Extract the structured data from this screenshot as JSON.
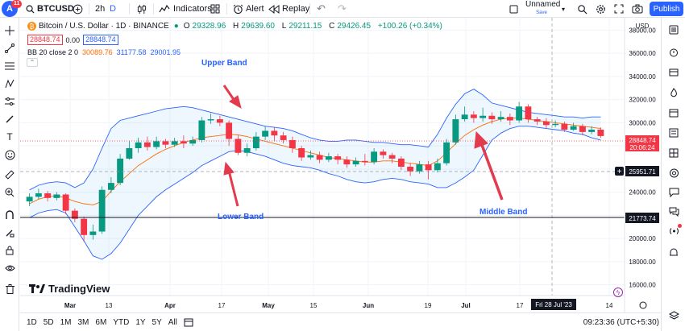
{
  "header": {
    "badge_count": "11",
    "symbol": "BTCUSD",
    "interval": "2h",
    "chart_style_letter": "D",
    "indicators_label": "Indicators",
    "alert_label": "Alert",
    "replay_label": "Replay",
    "layout_name": "Unnamed",
    "layout_status": "Save",
    "publish_label": "Publish"
  },
  "legend": {
    "title": "Bitcoin / U.S. Dollar · 1D · BINANCE",
    "ohlc": [
      {
        "k": "O",
        "v": "29328.96"
      },
      {
        "k": "H",
        "v": "29639.60"
      },
      {
        "k": "L",
        "v": "29211.15"
      },
      {
        "k": "C",
        "v": "29426.45"
      }
    ],
    "change": "+100.26 (+0.34%)",
    "bid": "28848.74",
    "spread": "0.00",
    "ask": "28848.74",
    "bb_name": "BB 20 close 2 0",
    "bb_basis": "30089.76",
    "bb_upper": "31177.58",
    "bb_lower": "29001.95"
  },
  "axis": {
    "currency": "USD",
    "price_ticks": [
      "38000.00",
      "36000.00",
      "34000.00",
      "32000.00",
      "30000.00",
      "28000.00",
      "26000.00",
      "24000.00",
      "22000.00",
      "20000.00",
      "18000.00",
      "16000.00"
    ],
    "current_price": "28848.74",
    "countdown": "20:06:24",
    "crosshair_price": "25951.71",
    "line_price": "21773.74",
    "time_ticks": [
      {
        "label": "Mar",
        "bold": true
      },
      {
        "label": "13",
        "bold": false
      },
      {
        "label": "Apr",
        "bold": true
      },
      {
        "label": "17",
        "bold": false
      },
      {
        "label": "May",
        "bold": true
      },
      {
        "label": "15",
        "bold": false
      },
      {
        "label": "Jun",
        "bold": true
      },
      {
        "label": "19",
        "bold": false
      },
      {
        "label": "Jul",
        "bold": true
      },
      {
        "label": "17",
        "bold": false
      },
      {
        "label": "14",
        "bold": false
      }
    ],
    "crosshair_date": "Fri 28 Jul '23"
  },
  "annotations": {
    "upper": "Upper Band",
    "lower": "Lower Band",
    "middle": "Middle Band"
  },
  "brand": "TradingView",
  "footer": {
    "ranges": [
      "1D",
      "5D",
      "1M",
      "3M",
      "6M",
      "YTD",
      "1Y",
      "5Y",
      "All"
    ],
    "clock": "09:23:36 (UTC+5:30)"
  },
  "chart_data": {
    "type": "candlestick",
    "title": "Bitcoin / U.S. Dollar · 1D · BINANCE",
    "ylim": [
      15000,
      39000
    ],
    "basis": [
      23000,
      23400,
      23600,
      23700,
      23500,
      23200,
      23000,
      22900,
      23200,
      24100,
      24900,
      25600,
      26300,
      26800,
      27300,
      27700,
      28000,
      28300,
      28500,
      28700,
      28800,
      28900,
      29000,
      28950,
      28800,
      28600,
      28400,
      28200,
      28000,
      27800,
      27600,
      27400,
      27200,
      27000,
      26900,
      26800,
      26700,
      26600,
      26600,
      26700,
      26700,
      26600,
      26500,
      26400,
      26300,
      26700,
      27400,
      28200,
      28900,
      29400,
      29800,
      30100,
      30300,
      30400,
      30400,
      30300,
      30200,
      30100,
      30000,
      29900,
      29800,
      29700,
      29600,
      29500
    ],
    "upper": [
      24200,
      24600,
      24800,
      24900,
      24800,
      24400,
      24800,
      26000,
      27800,
      29500,
      30200,
      30400,
      30600,
      30800,
      31000,
      31200,
      31300,
      31400,
      31300,
      31100,
      30900,
      30700,
      30500,
      30300,
      30100,
      29900,
      29700,
      29600,
      29500,
      29300,
      29000,
      28700,
      28500,
      28400,
      28400,
      28500,
      28500,
      28400,
      28300,
      28300,
      28200,
      28100,
      28100,
      28000,
      27900,
      29000,
      30400,
      31600,
      32500,
      32900,
      32400,
      31700,
      31500,
      31300,
      31100,
      30900,
      30800,
      30700,
      30600,
      30500,
      30500,
      30400,
      30500,
      30500
    ],
    "lower": [
      21800,
      22200,
      22400,
      22500,
      22200,
      21000,
      19800,
      18500,
      18200,
      18700,
      19600,
      20800,
      22000,
      22800,
      23600,
      24200,
      24700,
      25200,
      25700,
      26300,
      26700,
      27100,
      27500,
      27600,
      27500,
      27300,
      27100,
      26800,
      26500,
      26300,
      26200,
      26100,
      25900,
      25600,
      25400,
      25100,
      24900,
      24800,
      24900,
      25100,
      25200,
      25100,
      24900,
      24800,
      24700,
      24400,
      24400,
      24800,
      25300,
      25900,
      27200,
      28500,
      29100,
      29500,
      29700,
      29700,
      29600,
      29500,
      29400,
      29300,
      29100,
      29000,
      28700,
      28500
    ],
    "candles": [
      {
        "o": 23200,
        "c": 23600,
        "h": 23900,
        "l": 22800
      },
      {
        "o": 23600,
        "c": 23900,
        "h": 24300,
        "l": 23400
      },
      {
        "o": 23900,
        "c": 23500,
        "h": 24100,
        "l": 23200
      },
      {
        "o": 23500,
        "c": 23800,
        "h": 24000,
        "l": 23300
      },
      {
        "o": 23800,
        "c": 22400,
        "h": 23900,
        "l": 22100
      },
      {
        "o": 22400,
        "c": 21700,
        "h": 22600,
        "l": 21400
      },
      {
        "o": 21700,
        "c": 20300,
        "h": 21900,
        "l": 19700
      },
      {
        "o": 20300,
        "c": 20600,
        "h": 21200,
        "l": 19900
      },
      {
        "o": 20600,
        "c": 24200,
        "h": 24500,
        "l": 20400
      },
      {
        "o": 24200,
        "c": 24800,
        "h": 25300,
        "l": 23900
      },
      {
        "o": 24800,
        "c": 26900,
        "h": 27300,
        "l": 24600
      },
      {
        "o": 26900,
        "c": 27800,
        "h": 28400,
        "l": 26800
      },
      {
        "o": 27800,
        "c": 28300,
        "h": 28700,
        "l": 27400
      },
      {
        "o": 28300,
        "c": 27900,
        "h": 28800,
        "l": 27600
      },
      {
        "o": 27900,
        "c": 28400,
        "h": 28800,
        "l": 27700
      },
      {
        "o": 28400,
        "c": 28100,
        "h": 28600,
        "l": 27800
      },
      {
        "o": 28100,
        "c": 28400,
        "h": 28700,
        "l": 27900
      },
      {
        "o": 28400,
        "c": 28200,
        "h": 28900,
        "l": 27800
      },
      {
        "o": 28200,
        "c": 28500,
        "h": 28800,
        "l": 28000
      },
      {
        "o": 28500,
        "c": 30200,
        "h": 30500,
        "l": 28300
      },
      {
        "o": 30200,
        "c": 30300,
        "h": 30800,
        "l": 29900
      },
      {
        "o": 30300,
        "c": 30000,
        "h": 30600,
        "l": 29700
      },
      {
        "o": 30000,
        "c": 28600,
        "h": 30200,
        "l": 28000
      },
      {
        "o": 28600,
        "c": 27400,
        "h": 28900,
        "l": 27200
      },
      {
        "o": 27400,
        "c": 27800,
        "h": 28200,
        "l": 27100
      },
      {
        "o": 27800,
        "c": 28800,
        "h": 29200,
        "l": 27600
      },
      {
        "o": 28800,
        "c": 29300,
        "h": 29700,
        "l": 28500
      },
      {
        "o": 29300,
        "c": 28900,
        "h": 29600,
        "l": 28400
      },
      {
        "o": 28900,
        "c": 28500,
        "h": 29200,
        "l": 28200
      },
      {
        "o": 28500,
        "c": 27800,
        "h": 28800,
        "l": 27400
      },
      {
        "o": 27800,
        "c": 27000,
        "h": 28000,
        "l": 26700
      },
      {
        "o": 27000,
        "c": 27200,
        "h": 27600,
        "l": 26800
      },
      {
        "o": 27200,
        "c": 26800,
        "h": 27500,
        "l": 26500
      },
      {
        "o": 26800,
        "c": 27100,
        "h": 27400,
        "l": 26600
      },
      {
        "o": 27100,
        "c": 26800,
        "h": 27300,
        "l": 26400
      },
      {
        "o": 26800,
        "c": 26400,
        "h": 27100,
        "l": 26100
      },
      {
        "o": 26400,
        "c": 26700,
        "h": 27000,
        "l": 26200
      },
      {
        "o": 26700,
        "c": 26600,
        "h": 27300,
        "l": 26300
      },
      {
        "o": 26600,
        "c": 27500,
        "h": 27800,
        "l": 26400
      },
      {
        "o": 27500,
        "c": 27200,
        "h": 27700,
        "l": 26900
      },
      {
        "o": 27200,
        "c": 26900,
        "h": 27400,
        "l": 26500
      },
      {
        "o": 26900,
        "c": 26200,
        "h": 27100,
        "l": 25900
      },
      {
        "o": 26200,
        "c": 25800,
        "h": 26500,
        "l": 25400
      },
      {
        "o": 25800,
        "c": 26400,
        "h": 26700,
        "l": 25600
      },
      {
        "o": 26400,
        "c": 25900,
        "h": 26700,
        "l": 25100
      },
      {
        "o": 25900,
        "c": 26500,
        "h": 26900,
        "l": 25700
      },
      {
        "o": 26500,
        "c": 28300,
        "h": 28600,
        "l": 26300
      },
      {
        "o": 28300,
        "c": 30300,
        "h": 30700,
        "l": 28100
      },
      {
        "o": 30300,
        "c": 30700,
        "h": 31400,
        "l": 30100
      },
      {
        "o": 30700,
        "c": 30400,
        "h": 31000,
        "l": 30000
      },
      {
        "o": 30400,
        "c": 30600,
        "h": 31300,
        "l": 30100
      },
      {
        "o": 30600,
        "c": 30300,
        "h": 30900,
        "l": 29900
      },
      {
        "o": 30300,
        "c": 30500,
        "h": 31000,
        "l": 30100
      },
      {
        "o": 30500,
        "c": 30200,
        "h": 30800,
        "l": 29800
      },
      {
        "o": 30200,
        "c": 31400,
        "h": 31800,
        "l": 30000
      },
      {
        "o": 31400,
        "c": 30300,
        "h": 31600,
        "l": 30000
      },
      {
        "o": 30300,
        "c": 30100,
        "h": 30500,
        "l": 29800
      },
      {
        "o": 30100,
        "c": 29800,
        "h": 30400,
        "l": 29500
      },
      {
        "o": 29800,
        "c": 29900,
        "h": 30200,
        "l": 29600
      },
      {
        "o": 29900,
        "c": 29400,
        "h": 30100,
        "l": 29200
      },
      {
        "o": 29400,
        "c": 29700,
        "h": 30000,
        "l": 29300
      },
      {
        "o": 29700,
        "c": 29200,
        "h": 29900,
        "l": 28900
      },
      {
        "o": 29200,
        "c": 29400,
        "h": 29700,
        "l": 29000
      },
      {
        "o": 29400,
        "c": 28850,
        "h": 29600,
        "l": 28700
      }
    ]
  }
}
